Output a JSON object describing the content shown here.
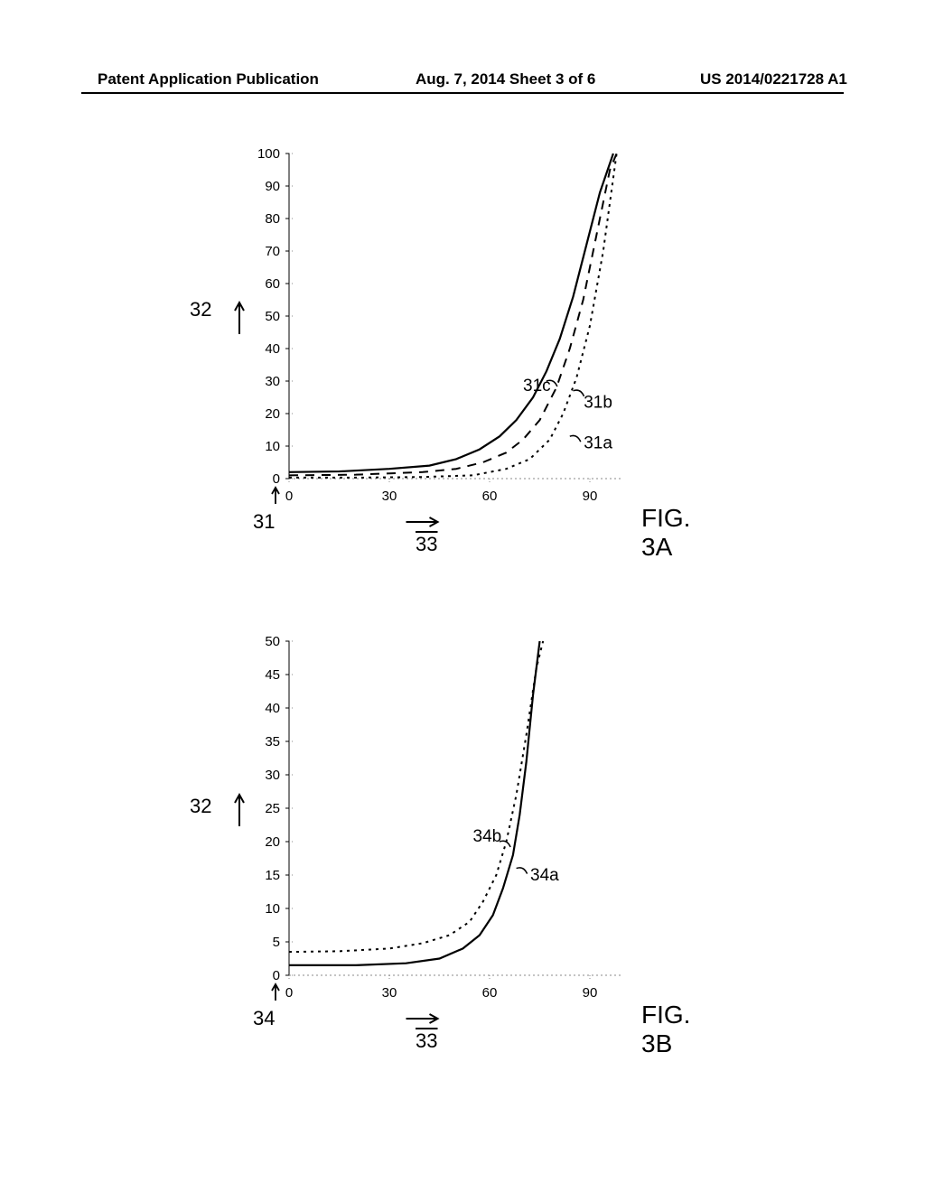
{
  "header": {
    "left": "Patent Application Publication",
    "center": "Aug. 7, 2014   Sheet 3 of 6",
    "right": "US 2014/0221728 A1"
  },
  "chartA": {
    "type": "line",
    "figLabel": "FIG. 3A",
    "yAxis": {
      "label": "32",
      "ticks": [
        0,
        10,
        20,
        30,
        40,
        50,
        60,
        70,
        80,
        90,
        100
      ],
      "min": 0,
      "max": 100
    },
    "xAxis": {
      "label": "33",
      "originLabel": "31",
      "ticks": [
        0,
        30,
        60,
        90
      ],
      "min": 0,
      "max": 100
    },
    "curves": {
      "31a": {
        "style": "dotted",
        "label": "31a",
        "points": [
          [
            0,
            0.3
          ],
          [
            20,
            0.3
          ],
          [
            40,
            0.5
          ],
          [
            55,
            1
          ],
          [
            65,
            3
          ],
          [
            72,
            6
          ],
          [
            78,
            12
          ],
          [
            82,
            20
          ],
          [
            86,
            31
          ],
          [
            90,
            47
          ],
          [
            94,
            70
          ],
          [
            98,
            100
          ]
        ]
      },
      "31b": {
        "style": "dashed",
        "label": "31b",
        "points": [
          [
            0,
            1
          ],
          [
            20,
            1.2
          ],
          [
            40,
            2
          ],
          [
            50,
            3
          ],
          [
            58,
            5
          ],
          [
            65,
            8
          ],
          [
            70,
            12
          ],
          [
            75,
            18
          ],
          [
            80,
            28
          ],
          [
            84,
            40
          ],
          [
            88,
            55
          ],
          [
            92,
            75
          ],
          [
            96,
            95
          ],
          [
            98,
            100
          ]
        ]
      },
      "31c": {
        "style": "solid",
        "label": "31c",
        "points": [
          [
            0,
            2
          ],
          [
            15,
            2.2
          ],
          [
            30,
            3
          ],
          [
            42,
            4
          ],
          [
            50,
            6
          ],
          [
            57,
            9
          ],
          [
            63,
            13
          ],
          [
            68,
            18
          ],
          [
            73,
            25
          ],
          [
            77,
            33
          ],
          [
            81,
            43
          ],
          [
            85,
            56
          ],
          [
            89,
            72
          ],
          [
            93,
            88
          ],
          [
            97,
            100
          ]
        ]
      }
    },
    "colors": {
      "line": "#000000",
      "tick": "#000000",
      "grid": "#999999"
    }
  },
  "chartB": {
    "type": "line",
    "figLabel": "FIG. 3B",
    "yAxis": {
      "label": "32",
      "ticks": [
        0,
        5,
        10,
        15,
        20,
        25,
        30,
        35,
        40,
        45,
        50
      ],
      "min": 0,
      "max": 50
    },
    "xAxis": {
      "label": "33",
      "originLabel": "34",
      "ticks": [
        0,
        30,
        60,
        90
      ],
      "min": 0,
      "max": 100
    },
    "curves": {
      "34a": {
        "style": "solid",
        "label": "34a",
        "points": [
          [
            0,
            1.5
          ],
          [
            20,
            1.5
          ],
          [
            35,
            1.8
          ],
          [
            45,
            2.5
          ],
          [
            52,
            4
          ],
          [
            57,
            6
          ],
          [
            61,
            9
          ],
          [
            64,
            13
          ],
          [
            67,
            18
          ],
          [
            69,
            24
          ],
          [
            71,
            32
          ],
          [
            73,
            42
          ],
          [
            75,
            50
          ]
        ]
      },
      "34b": {
        "style": "dotted",
        "label": "34b",
        "points": [
          [
            0,
            3.5
          ],
          [
            15,
            3.6
          ],
          [
            30,
            4
          ],
          [
            40,
            4.8
          ],
          [
            48,
            6
          ],
          [
            54,
            8
          ],
          [
            58,
            11
          ],
          [
            62,
            15
          ],
          [
            65,
            20
          ],
          [
            68,
            27
          ],
          [
            71,
            36
          ],
          [
            74,
            46
          ],
          [
            76,
            50
          ]
        ]
      }
    },
    "colors": {
      "line": "#000000",
      "tick": "#000000",
      "grid": "#999999"
    }
  }
}
